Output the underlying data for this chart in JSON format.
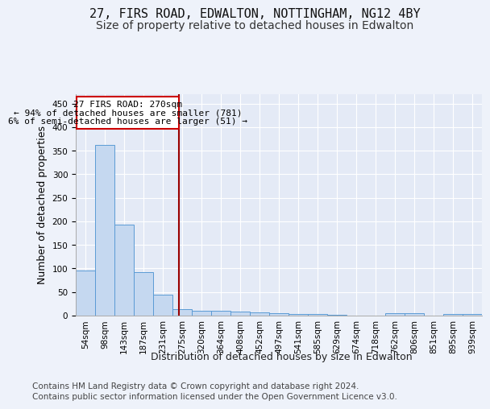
{
  "title_line1": "27, FIRS ROAD, EDWALTON, NOTTINGHAM, NG12 4BY",
  "title_line2": "Size of property relative to detached houses in Edwalton",
  "xlabel": "Distribution of detached houses by size in Edwalton",
  "ylabel": "Number of detached properties",
  "footer_line1": "Contains HM Land Registry data © Crown copyright and database right 2024.",
  "footer_line2": "Contains public sector information licensed under the Open Government Licence v3.0.",
  "bar_labels": [
    "54sqm",
    "98sqm",
    "143sqm",
    "187sqm",
    "231sqm",
    "275sqm",
    "320sqm",
    "364sqm",
    "408sqm",
    "452sqm",
    "497sqm",
    "541sqm",
    "585sqm",
    "629sqm",
    "674sqm",
    "718sqm",
    "762sqm",
    "806sqm",
    "851sqm",
    "895sqm",
    "939sqm"
  ],
  "bar_values": [
    95,
    362,
    193,
    93,
    45,
    13,
    10,
    10,
    8,
    6,
    5,
    4,
    3,
    1,
    0,
    0,
    5,
    5,
    0,
    3,
    3
  ],
  "bar_color": "#c5d8f0",
  "bar_edge_color": "#5b9bd5",
  "property_line_x": 4.85,
  "property_line_color": "#990000",
  "annotation_text_line1": "27 FIRS ROAD: 270sqm",
  "annotation_text_line2": "← 94% of detached houses are smaller (781)",
  "annotation_text_line3": "6% of semi-detached houses are larger (51) →",
  "annotation_box_color": "#ffffff",
  "annotation_box_edge": "#cc0000",
  "ylim": [
    0,
    470
  ],
  "yticks": [
    0,
    50,
    100,
    150,
    200,
    250,
    300,
    350,
    400,
    450
  ],
  "background_color": "#eef2fa",
  "plot_background": "#e4eaf6",
  "grid_color": "#ffffff",
  "title_fontsize": 11,
  "subtitle_fontsize": 10,
  "tick_fontsize": 7.5,
  "ylabel_fontsize": 9,
  "xlabel_fontsize": 9,
  "footer_fontsize": 7.5,
  "annotation_fontsize": 8
}
